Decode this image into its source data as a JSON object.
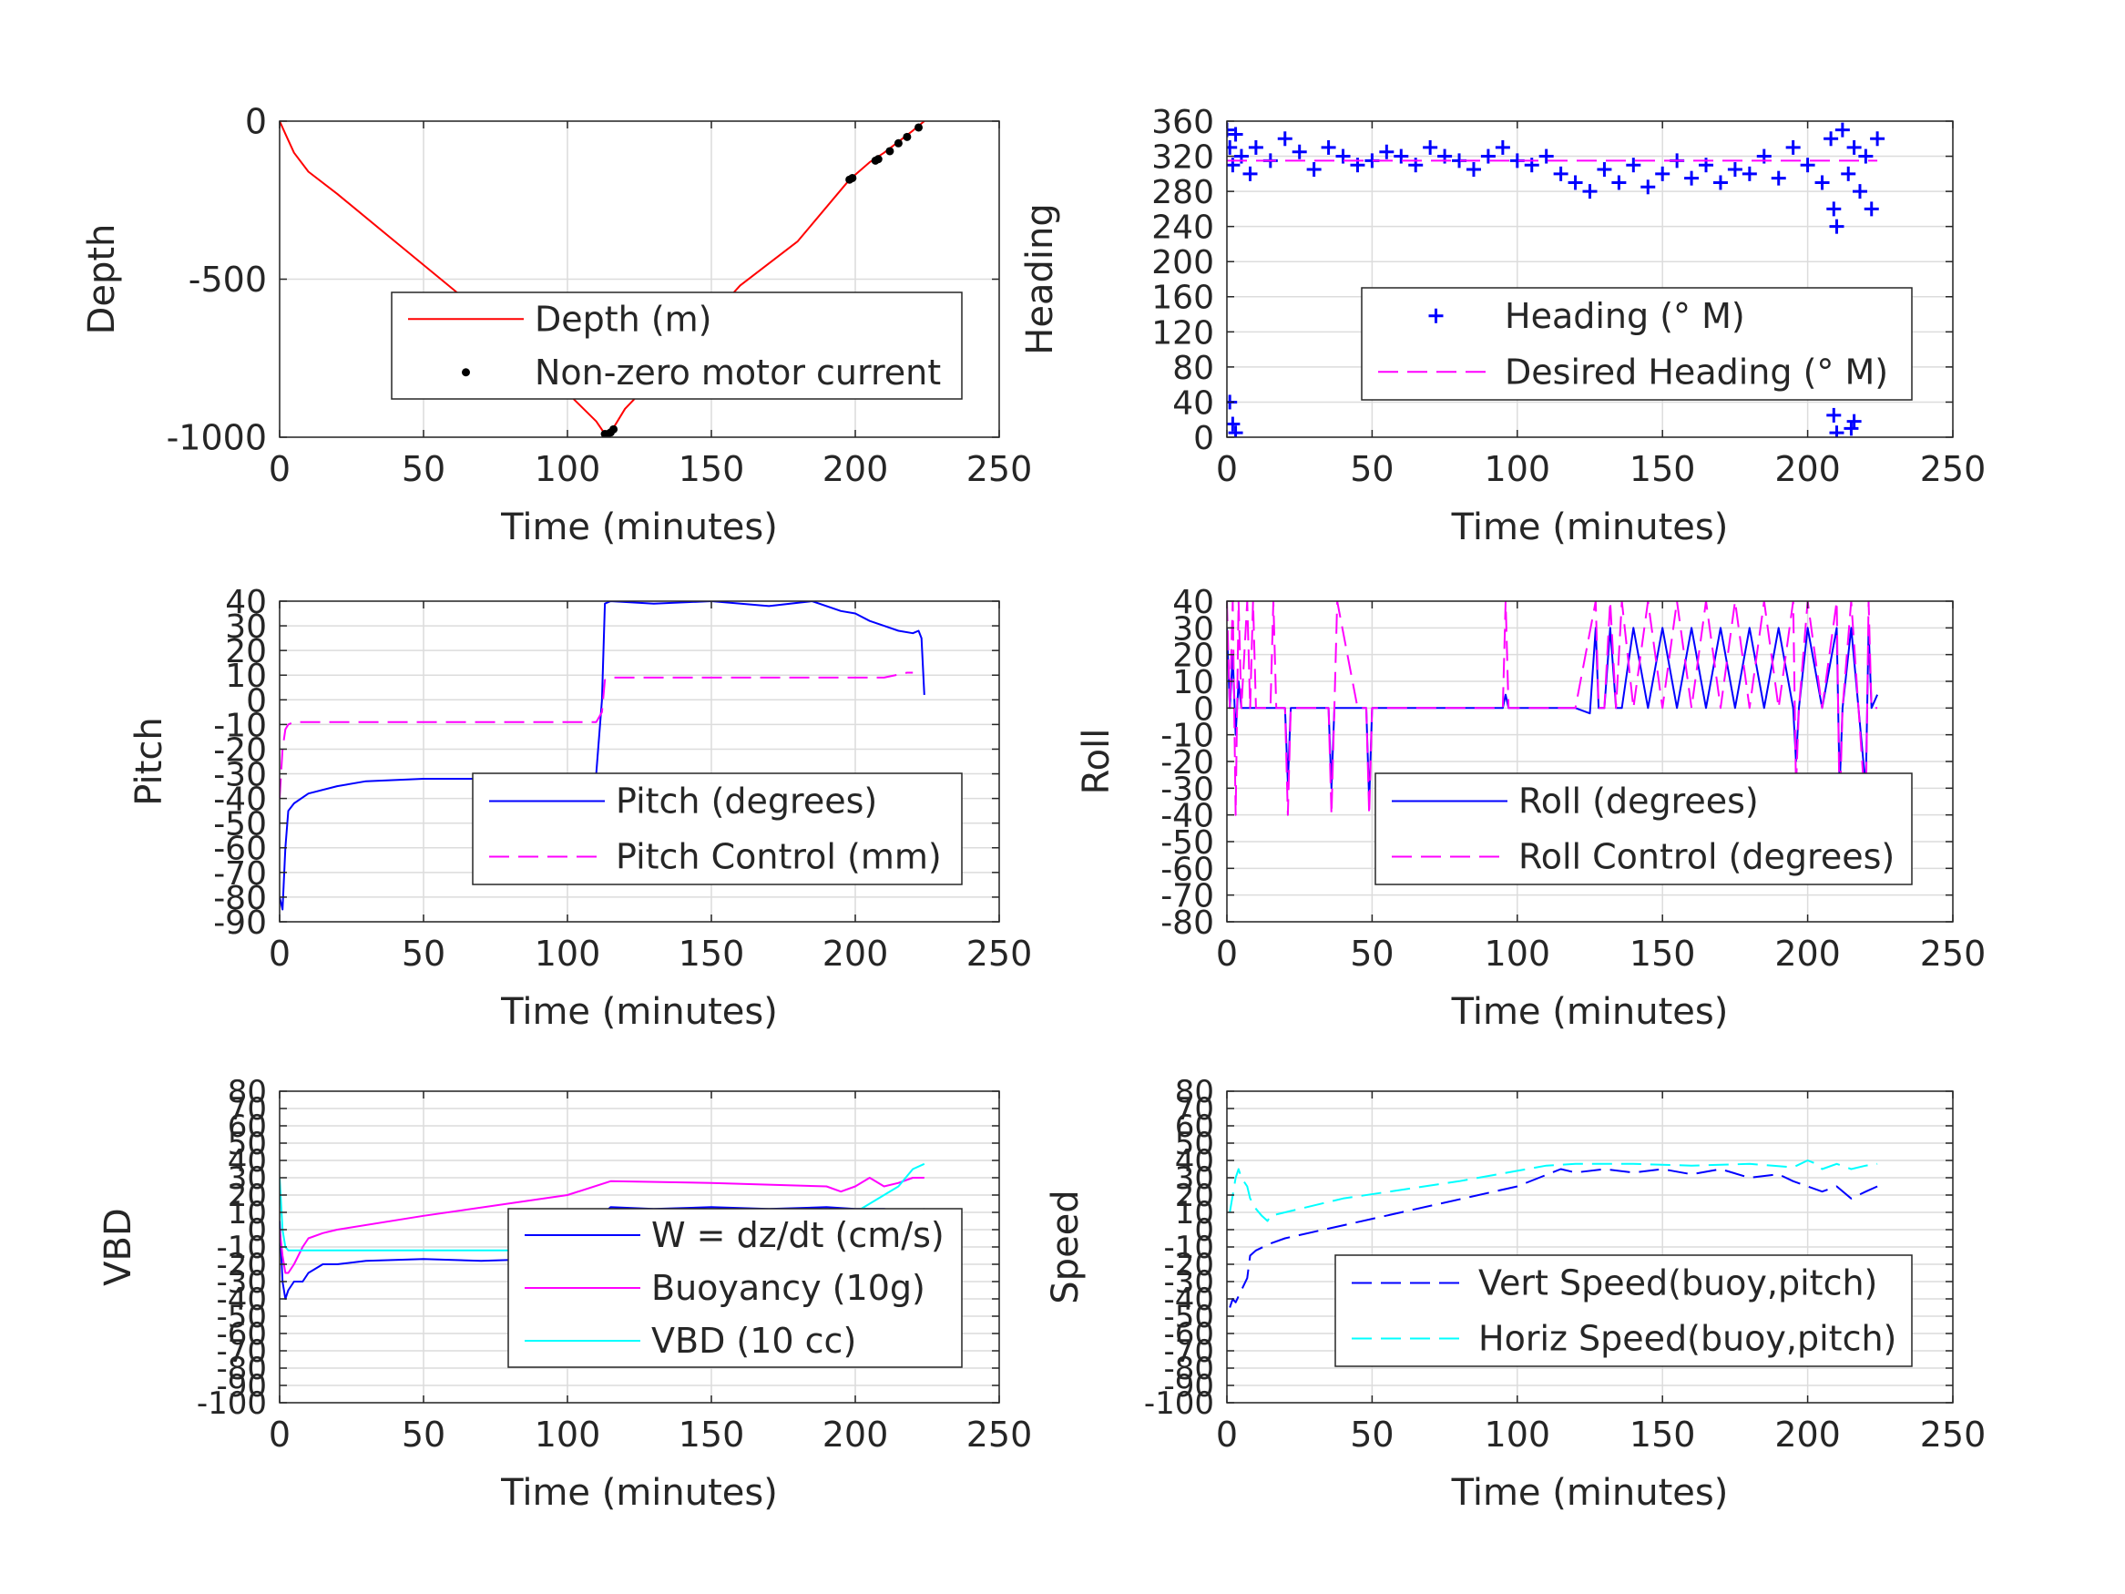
{
  "chart_data": [
    {
      "type": "line",
      "xlabel": "Time (minutes)",
      "ylabel": "Depth",
      "xlim": [
        0,
        250
      ],
      "ylim": [
        -1000,
        0
      ],
      "xticks": [
        0,
        50,
        100,
        150,
        200,
        250
      ],
      "yticks": [
        -1000,
        -500,
        0
      ],
      "grid": true,
      "legend_position": "lower-right",
      "series": [
        {
          "name": "Depth (m)",
          "style": "solid",
          "color": "#ff0000",
          "x": [
            0,
            2,
            5,
            10,
            20,
            40,
            60,
            80,
            100,
            110,
            113,
            115,
            120,
            140,
            160,
            180,
            198,
            205,
            210,
            215,
            220,
            224
          ],
          "y": [
            0,
            -40,
            -100,
            -160,
            -230,
            -380,
            -530,
            -680,
            -860,
            -950,
            -990,
            -985,
            -910,
            -720,
            -520,
            -380,
            -185,
            -130,
            -100,
            -65,
            -30,
            0
          ]
        },
        {
          "name": "Non-zero motor current",
          "style": "dots",
          "color": "#000000",
          "x": [
            113,
            114,
            115,
            116,
            198,
            199,
            207,
            208,
            212,
            215,
            218,
            222
          ],
          "y": [
            -990,
            -990,
            -985,
            -975,
            -185,
            -180,
            -125,
            -120,
            -95,
            -70,
            -50,
            -20
          ]
        }
      ]
    },
    {
      "type": "scatter",
      "xlabel": "Time (minutes)",
      "ylabel": "Heading",
      "xlim": [
        0,
        250
      ],
      "ylim": [
        0,
        360
      ],
      "xticks": [
        0,
        50,
        100,
        150,
        200,
        250
      ],
      "yticks": [
        0,
        40,
        80,
        120,
        160,
        200,
        240,
        280,
        320,
        360
      ],
      "grid": true,
      "legend_position": "lower-right",
      "series": [
        {
          "name": "Heading (° M)",
          "style": "plus",
          "color": "#0000ff",
          "x": [
            0,
            1,
            2,
            3,
            5,
            8,
            10,
            15,
            20,
            25,
            30,
            35,
            40,
            45,
            50,
            55,
            60,
            65,
            70,
            75,
            80,
            85,
            90,
            95,
            100,
            105,
            110,
            115,
            120,
            125,
            130,
            135,
            140,
            145,
            150,
            155,
            160,
            165,
            170,
            175,
            180,
            185,
            190,
            195,
            200,
            205,
            208,
            209,
            210,
            212,
            214,
            216,
            218,
            220,
            222,
            224,
            1,
            2,
            3,
            209,
            210,
            215,
            216
          ],
          "y": [
            350,
            330,
            310,
            345,
            320,
            300,
            330,
            315,
            340,
            325,
            305,
            330,
            320,
            310,
            315,
            325,
            320,
            310,
            330,
            320,
            315,
            305,
            320,
            330,
            315,
            310,
            320,
            300,
            290,
            280,
            305,
            290,
            310,
            285,
            300,
            315,
            295,
            310,
            290,
            305,
            300,
            320,
            295,
            330,
            310,
            290,
            340,
            260,
            240,
            350,
            300,
            330,
            280,
            320,
            260,
            340,
            40,
            15,
            5,
            25,
            5,
            10,
            18
          ]
        },
        {
          "name": "Desired Heading (° M)",
          "style": "dashed",
          "color": "#ff00ff",
          "x": [
            0,
            224
          ],
          "y": [
            315,
            315
          ]
        }
      ]
    },
    {
      "type": "line",
      "xlabel": "Time (minutes)",
      "ylabel": "Pitch",
      "xlim": [
        0,
        250
      ],
      "ylim": [
        -90,
        40
      ],
      "xticks": [
        0,
        50,
        100,
        150,
        200,
        250
      ],
      "yticks": [
        -90,
        -80,
        -70,
        -60,
        -50,
        -40,
        -30,
        -20,
        -10,
        0,
        10,
        20,
        30,
        40
      ],
      "grid": true,
      "legend_position": "lower-right",
      "series": [
        {
          "name": "Pitch (degrees)",
          "style": "solid",
          "color": "#0000ff",
          "x": [
            0,
            1,
            2,
            3,
            5,
            10,
            20,
            30,
            50,
            80,
            100,
            110,
            112,
            113,
            115,
            130,
            150,
            170,
            185,
            195,
            200,
            205,
            210,
            215,
            220,
            222,
            223,
            224
          ],
          "y": [
            -80,
            -85,
            -60,
            -45,
            -42,
            -38,
            -35,
            -33,
            -32,
            -32,
            -31,
            -30,
            0,
            39,
            40,
            39,
            40,
            38,
            40,
            36,
            35,
            32,
            30,
            28,
            27,
            28,
            25,
            2
          ]
        },
        {
          "name": "Pitch Control (mm)",
          "style": "dashed",
          "color": "#ff00ff",
          "x": [
            0,
            1,
            2,
            3,
            5,
            50,
            100,
            110,
            112,
            113,
            115,
            150,
            190,
            210,
            218,
            220
          ],
          "y": [
            -40,
            -20,
            -12,
            -10,
            -9,
            -9,
            -9,
            -9,
            -5,
            8,
            9,
            9,
            9,
            9,
            11,
            11
          ]
        }
      ]
    },
    {
      "type": "line",
      "xlabel": "Time (minutes)",
      "ylabel": "Roll",
      "xlim": [
        0,
        250
      ],
      "ylim": [
        -80,
        40
      ],
      "xticks": [
        0,
        50,
        100,
        150,
        200,
        250
      ],
      "yticks": [
        -80,
        -70,
        -60,
        -50,
        -40,
        -30,
        -20,
        -10,
        0,
        10,
        20,
        30,
        40
      ],
      "grid": true,
      "legend_position": "lower-right",
      "series": [
        {
          "name": "Roll (degrees)",
          "style": "solid",
          "color": "#0000ff",
          "x": [
            0,
            1,
            2,
            3,
            4,
            5,
            8,
            10,
            12,
            15,
            20,
            21,
            22,
            30,
            35,
            36,
            37,
            45,
            48,
            49,
            50,
            55,
            60,
            90,
            95,
            96,
            97,
            98,
            100,
            110,
            115,
            120,
            125,
            127,
            128,
            130,
            132,
            134,
            136,
            140,
            145,
            150,
            155,
            160,
            165,
            170,
            175,
            180,
            185,
            190,
            195,
            196,
            197,
            200,
            205,
            210,
            211,
            212,
            215,
            220,
            221,
            222,
            224
          ],
          "y": [
            30,
            0,
            20,
            -10,
            10,
            0,
            0,
            0,
            0,
            0,
            0,
            -28,
            0,
            0,
            0,
            -30,
            0,
            0,
            0,
            -35,
            0,
            0,
            0,
            0,
            0,
            5,
            0,
            0,
            0,
            0,
            0,
            0,
            -2,
            30,
            0,
            0,
            30,
            0,
            0,
            30,
            0,
            30,
            0,
            30,
            0,
            30,
            0,
            30,
            0,
            30,
            0,
            -20,
            0,
            30,
            0,
            30,
            -30,
            0,
            30,
            -30,
            30,
            0,
            5
          ]
        },
        {
          "name": "Roll Control (degrees)",
          "style": "dashed",
          "color": "#ff00ff",
          "x": [
            0,
            1,
            2,
            3,
            4,
            5,
            7,
            8,
            9,
            10,
            15,
            16,
            17,
            20,
            21,
            22,
            30,
            35,
            36,
            37,
            38,
            45,
            48,
            49,
            50,
            55,
            60,
            90,
            95,
            96,
            97,
            98,
            100,
            120,
            127,
            128,
            130,
            132,
            134,
            136,
            140,
            145,
            150,
            155,
            160,
            165,
            170,
            175,
            180,
            185,
            190,
            195,
            196,
            197,
            200,
            205,
            210,
            211,
            212,
            215,
            220,
            221,
            222,
            224
          ],
          "y": [
            40,
            0,
            40,
            -40,
            40,
            0,
            40,
            0,
            40,
            0,
            0,
            40,
            0,
            0,
            -40,
            0,
            0,
            0,
            -40,
            0,
            40,
            0,
            0,
            -40,
            0,
            0,
            0,
            0,
            0,
            40,
            0,
            0,
            0,
            0,
            40,
            0,
            0,
            40,
            0,
            40,
            0,
            40,
            0,
            40,
            0,
            40,
            0,
            40,
            0,
            40,
            0,
            40,
            -30,
            0,
            40,
            0,
            40,
            -40,
            0,
            40,
            -40,
            40,
            0,
            0
          ]
        }
      ]
    },
    {
      "type": "line",
      "xlabel": "Time (minutes)",
      "ylabel": "VBD",
      "xlim": [
        0,
        250
      ],
      "ylim": [
        -100,
        80
      ],
      "xticks": [
        0,
        50,
        100,
        150,
        200,
        250
      ],
      "yticks": [
        -100,
        -90,
        -80,
        -70,
        -60,
        -50,
        -40,
        -30,
        -20,
        -10,
        0,
        10,
        20,
        30,
        40,
        50,
        60,
        70,
        80
      ],
      "grid": true,
      "legend_position": "lower-right",
      "series": [
        {
          "name": "W = dz/dt (cm/s)",
          "style": "solid",
          "color": "#0000ff",
          "x": [
            0,
            1,
            2,
            3,
            5,
            8,
            10,
            15,
            20,
            30,
            50,
            70,
            90,
            110,
            112,
            113,
            115,
            130,
            150,
            170,
            190,
            200,
            210,
            220,
            224
          ],
          "y": [
            5,
            -30,
            -40,
            -35,
            -30,
            -30,
            -25,
            -20,
            -20,
            -18,
            -17,
            -18,
            -17,
            -17,
            -15,
            10,
            13,
            12,
            13,
            12,
            13,
            12,
            12,
            10,
            12
          ]
        },
        {
          "name": "Buoyancy (10g)",
          "style": "solid",
          "color": "#ff00ff",
          "x": [
            0,
            1,
            2,
            3,
            5,
            8,
            10,
            15,
            20,
            50,
            100,
            115,
            150,
            190,
            195,
            200,
            205,
            210,
            215,
            220,
            224
          ],
          "y": [
            0,
            -15,
            -25,
            -25,
            -20,
            -10,
            -5,
            -2,
            0,
            8,
            20,
            28,
            27,
            25,
            22,
            25,
            30,
            25,
            27,
            30,
            30
          ]
        },
        {
          "name": "VBD (10 cc)",
          "style": "solid",
          "color": "#00ffff",
          "x": [
            0,
            1,
            2,
            3,
            5,
            10,
            50,
            100,
            110,
            112,
            113,
            115,
            150,
            190,
            195,
            200,
            205,
            210,
            215,
            220,
            224
          ],
          "y": [
            30,
            0,
            -10,
            -12,
            -12,
            -12,
            -12,
            -12,
            -12,
            -12,
            8,
            8,
            8,
            8,
            8,
            10,
            15,
            20,
            25,
            35,
            38
          ]
        }
      ]
    },
    {
      "type": "line",
      "xlabel": "Time (minutes)",
      "ylabel": "Speed",
      "xlim": [
        0,
        250
      ],
      "ylim": [
        -100,
        80
      ],
      "xticks": [
        0,
        50,
        100,
        150,
        200,
        250
      ],
      "yticks": [
        -100,
        -90,
        -80,
        -70,
        -60,
        -50,
        -40,
        -30,
        -20,
        -10,
        0,
        10,
        20,
        30,
        40,
        50,
        60,
        70,
        80
      ],
      "grid": true,
      "legend_position": "lower-right",
      "series": [
        {
          "name": "Vert Speed(buoy,pitch)",
          "style": "dashed",
          "color": "#0000ff",
          "x": [
            1,
            2,
            3,
            5,
            7,
            8,
            10,
            15,
            20,
            60,
            100,
            115,
            120,
            130,
            140,
            150,
            160,
            170,
            180,
            190,
            195,
            200,
            205,
            210,
            215,
            220,
            224
          ],
          "y": [
            -45,
            -40,
            -42,
            -35,
            -28,
            -15,
            -12,
            -8,
            -5,
            10,
            25,
            35,
            33,
            35,
            33,
            35,
            32,
            35,
            30,
            32,
            28,
            25,
            22,
            25,
            18,
            22,
            25
          ]
        },
        {
          "name": "Horiz Speed(buoy,pitch)",
          "style": "dashed",
          "color": "#00ffff",
          "x": [
            1,
            2,
            3,
            4,
            5,
            7,
            8,
            10,
            12,
            14,
            15,
            20,
            40,
            80,
            110,
            120,
            140,
            160,
            180,
            195,
            200,
            203,
            205,
            210,
            215,
            220,
            224
          ],
          "y": [
            10,
            20,
            30,
            35,
            30,
            25,
            18,
            12,
            8,
            5,
            8,
            10,
            18,
            28,
            37,
            38,
            38,
            37,
            38,
            36,
            40,
            38,
            35,
            38,
            35,
            37,
            38
          ]
        }
      ]
    }
  ]
}
